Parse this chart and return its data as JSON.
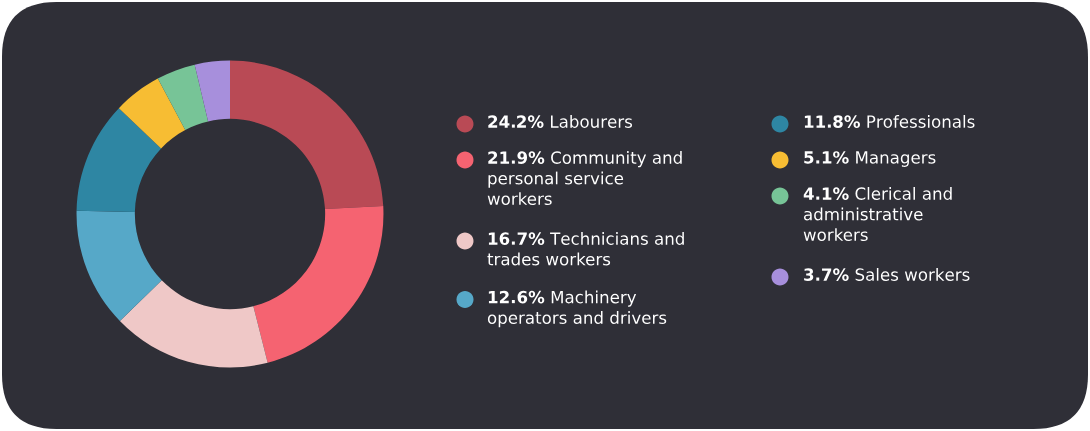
{
  "chart_data": {
    "type": "donut",
    "categories": [
      "Labourers",
      "Community and personal service workers",
      "Technicians and trades workers",
      "Machinery operators and drivers",
      "Professionals",
      "Managers",
      "Clerical and administrative workers",
      "Sales workers"
    ],
    "values": [
      24.2,
      21.9,
      16.7,
      12.6,
      11.8,
      5.1,
      4.1,
      3.7
    ],
    "value_labels": [
      "24.2%",
      "21.9%",
      "16.7%",
      "12.6%",
      "11.8%",
      "5.1%",
      "4.1%",
      "3.7%"
    ],
    "colors": [
      "#b94a55",
      "#f56371",
      "#efc8c7",
      "#56a8c8",
      "#2e86a3",
      "#f7bd33",
      "#77c497",
      "#a78fdc"
    ],
    "legend": "right"
  }
}
